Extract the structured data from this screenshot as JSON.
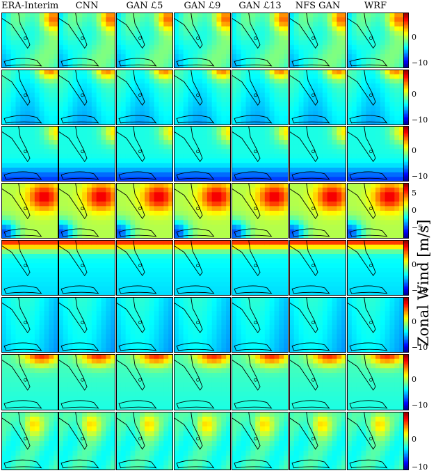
{
  "columns": [
    "ERA-Interim",
    "CNN",
    "GAN ℒ5",
    "GAN ℒ9",
    "GAN ℒ13",
    "NFS GAN",
    "WRF"
  ],
  "colorbar": {
    "label": "Zonal Wind [m/s]",
    "tick_sets": [
      [
        "0",
        "−10"
      ],
      [
        "0",
        "−10"
      ],
      [
        "0",
        "−10"
      ],
      [
        "5",
        "0",
        "−5"
      ],
      [
        "0",
        "−10"
      ],
      [
        "0",
        "−10"
      ],
      [
        "0",
        "−10"
      ],
      [
        "0",
        "−10"
      ]
    ]
  },
  "chart_data": {
    "type": "heatmap",
    "title": "",
    "colormap": "jet",
    "columns": [
      "ERA-Interim",
      "CNN",
      "GAN ℒ5",
      "GAN ℒ9",
      "GAN ℒ13",
      "NFS GAN",
      "WRF"
    ],
    "rows": 8,
    "rows_colorbar_ranges": [
      [
        -12,
        10
      ],
      [
        -12,
        10
      ],
      [
        -12,
        10
      ],
      [
        -8,
        8
      ],
      [
        -12,
        10
      ],
      [
        -12,
        10
      ],
      [
        -12,
        10
      ],
      [
        -11,
        10
      ]
    ],
    "colorbar_label": "Zonal Wind [m/s]"
  }
}
